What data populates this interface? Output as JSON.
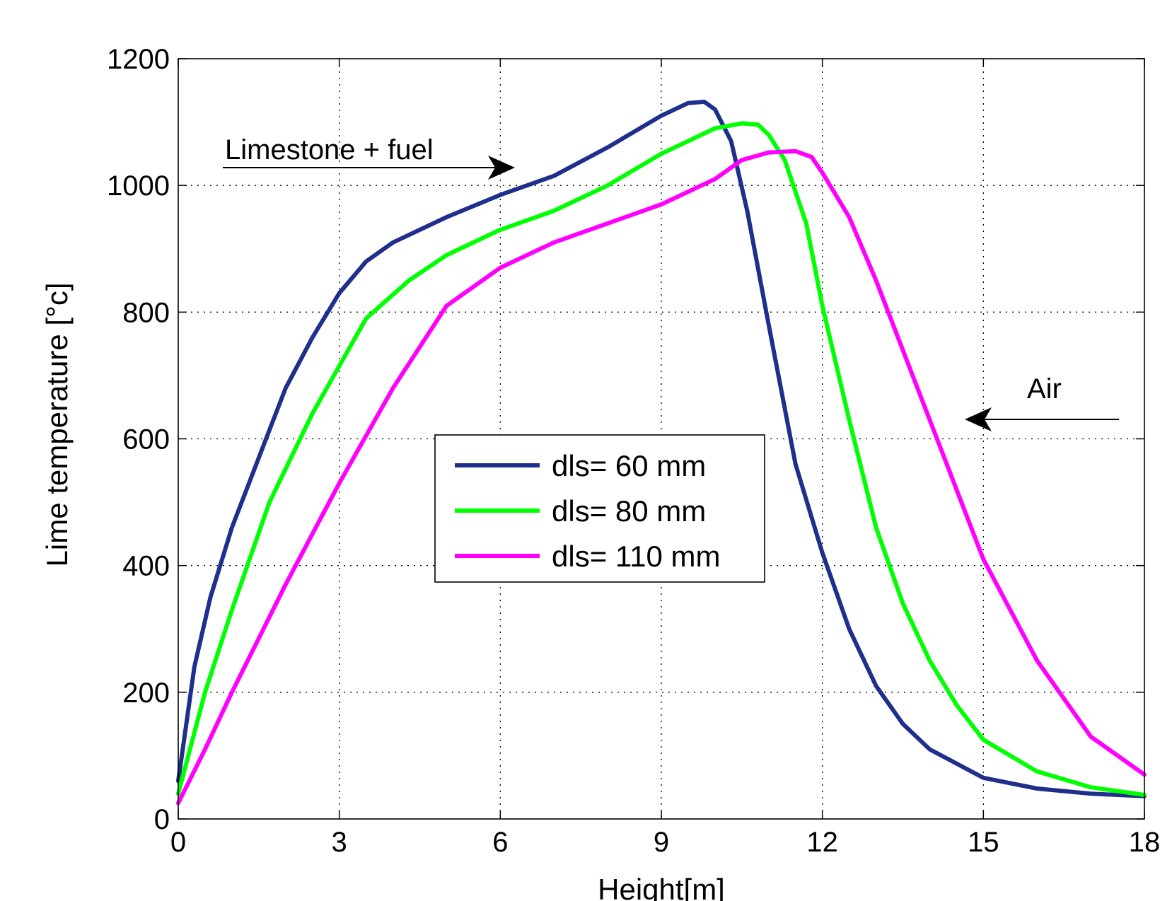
{
  "chart_data": {
    "type": "line",
    "title": "",
    "xlabel": "Height[m]",
    "ylabel": "Lime temperature [°c]",
    "xlim": [
      0,
      18
    ],
    "ylim": [
      0,
      1200
    ],
    "xticks": [
      0,
      3,
      6,
      9,
      12,
      15,
      18
    ],
    "yticks": [
      0,
      200,
      400,
      600,
      800,
      1000,
      1200
    ],
    "grid": true,
    "legend_position": "center",
    "series": [
      {
        "name": "dls= 60 mm",
        "color": "#1f2f8c",
        "x": [
          0,
          0.3,
          0.6,
          1,
          1.5,
          2,
          2.5,
          3,
          3.5,
          4,
          5,
          6,
          7,
          8,
          9,
          9.5,
          9.8,
          10,
          10.3,
          10.6,
          11,
          11.5,
          12,
          12.5,
          13,
          13.5,
          14,
          15,
          16,
          17,
          18
        ],
        "y": [
          60,
          240,
          350,
          460,
          570,
          680,
          760,
          830,
          880,
          910,
          950,
          985,
          1015,
          1060,
          1110,
          1130,
          1132,
          1120,
          1070,
          960,
          780,
          560,
          420,
          300,
          210,
          150,
          110,
          65,
          48,
          40,
          36
        ]
      },
      {
        "name": "dls= 80 mm",
        "color": "#00ff00",
        "x": [
          0,
          0.5,
          1,
          1.7,
          2.5,
          3.5,
          4.3,
          5,
          6,
          7,
          8,
          9,
          10,
          10.5,
          10.8,
          11,
          11.3,
          11.7,
          12,
          12.5,
          13,
          13.5,
          14,
          14.5,
          15,
          16,
          17,
          18
        ],
        "y": [
          40,
          200,
          330,
          500,
          640,
          790,
          850,
          890,
          930,
          960,
          1000,
          1050,
          1090,
          1098,
          1096,
          1080,
          1040,
          940,
          810,
          630,
          460,
          340,
          250,
          180,
          125,
          75,
          50,
          38
        ]
      },
      {
        "name": "dls= 110 mm",
        "color": "#ff00ff",
        "x": [
          0,
          0.5,
          1,
          2,
          3,
          4,
          5,
          6,
          7,
          8,
          9,
          10,
          10.5,
          11,
          11.5,
          11.8,
          12,
          12.5,
          13,
          13.5,
          14,
          15,
          16,
          17,
          18
        ],
        "y": [
          25,
          110,
          200,
          370,
          530,
          680,
          810,
          870,
          910,
          940,
          970,
          1010,
          1040,
          1052,
          1054,
          1045,
          1020,
          950,
          850,
          740,
          630,
          410,
          250,
          130,
          70
        ]
      }
    ],
    "annotations": [
      {
        "text": "Limestone + fuel",
        "arrow_direction": "right"
      },
      {
        "text": "Air",
        "arrow_direction": "left"
      }
    ]
  }
}
